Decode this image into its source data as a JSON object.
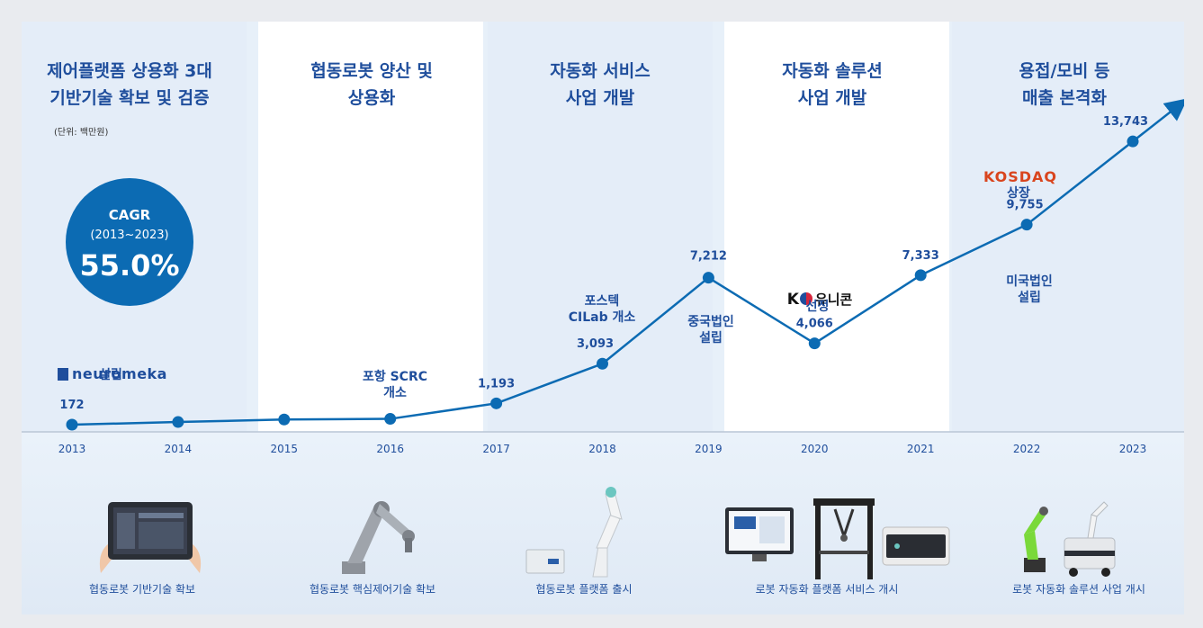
{
  "headers": [
    "제어플랫폼 상용화 3대\n기반기술 확보 및 검증",
    "협동로봇 양산 및\n상용화",
    "자동화 서비스\n사업 개발",
    "자동화 솔루션\n사업 개발",
    "용접/모비 등\n매출 본격화"
  ],
  "unit_label": "(단위: 백만원)",
  "cagr": {
    "label": "CAGR",
    "period": "(2013~2023)",
    "value": "55.0%"
  },
  "chart_data": {
    "type": "line",
    "x": [
      "2013",
      "2014",
      "2015",
      "2016",
      "2017",
      "2018",
      "2019",
      "2020",
      "2021",
      "2022",
      "2023"
    ],
    "values": [
      172,
      300,
      420,
      450,
      1193,
      3093,
      7212,
      4066,
      7333,
      9755,
      13743
    ],
    "value_labels": [
      "172",
      "",
      "",
      "",
      "1,193",
      "3,093",
      "7,212",
      "4,066",
      "7,333",
      "9,755",
      "13,743"
    ],
    "ylim": [
      0,
      15000
    ],
    "colors": {
      "line": "#0c6bb3",
      "label": "#1f4e9c",
      "axis": "#b9c6d6"
    }
  },
  "annotations": {
    "neuromeka_logo": "neuromeka",
    "neuromeka_sub": "설립",
    "pohang": "포항 SCRC\n개소",
    "postech": "포스텍\nCILab 개소",
    "china": "중국법인\n설립",
    "unicorn_logo": "유니콘",
    "unicorn_sub": "선정",
    "us": "미국법인\n설립",
    "kosdaq_logo": "KOSDAQ",
    "kosdaq_sub": "상장"
  },
  "captions": [
    "협동로봇 기반기술 확보",
    "협동로봇 핵심제어기술 확보",
    "협동로봇 플랫폼 출시",
    "로봇 자동화 플랫폼 서비스 개시",
    "로봇 자동화 솔루션 사업 개시"
  ]
}
